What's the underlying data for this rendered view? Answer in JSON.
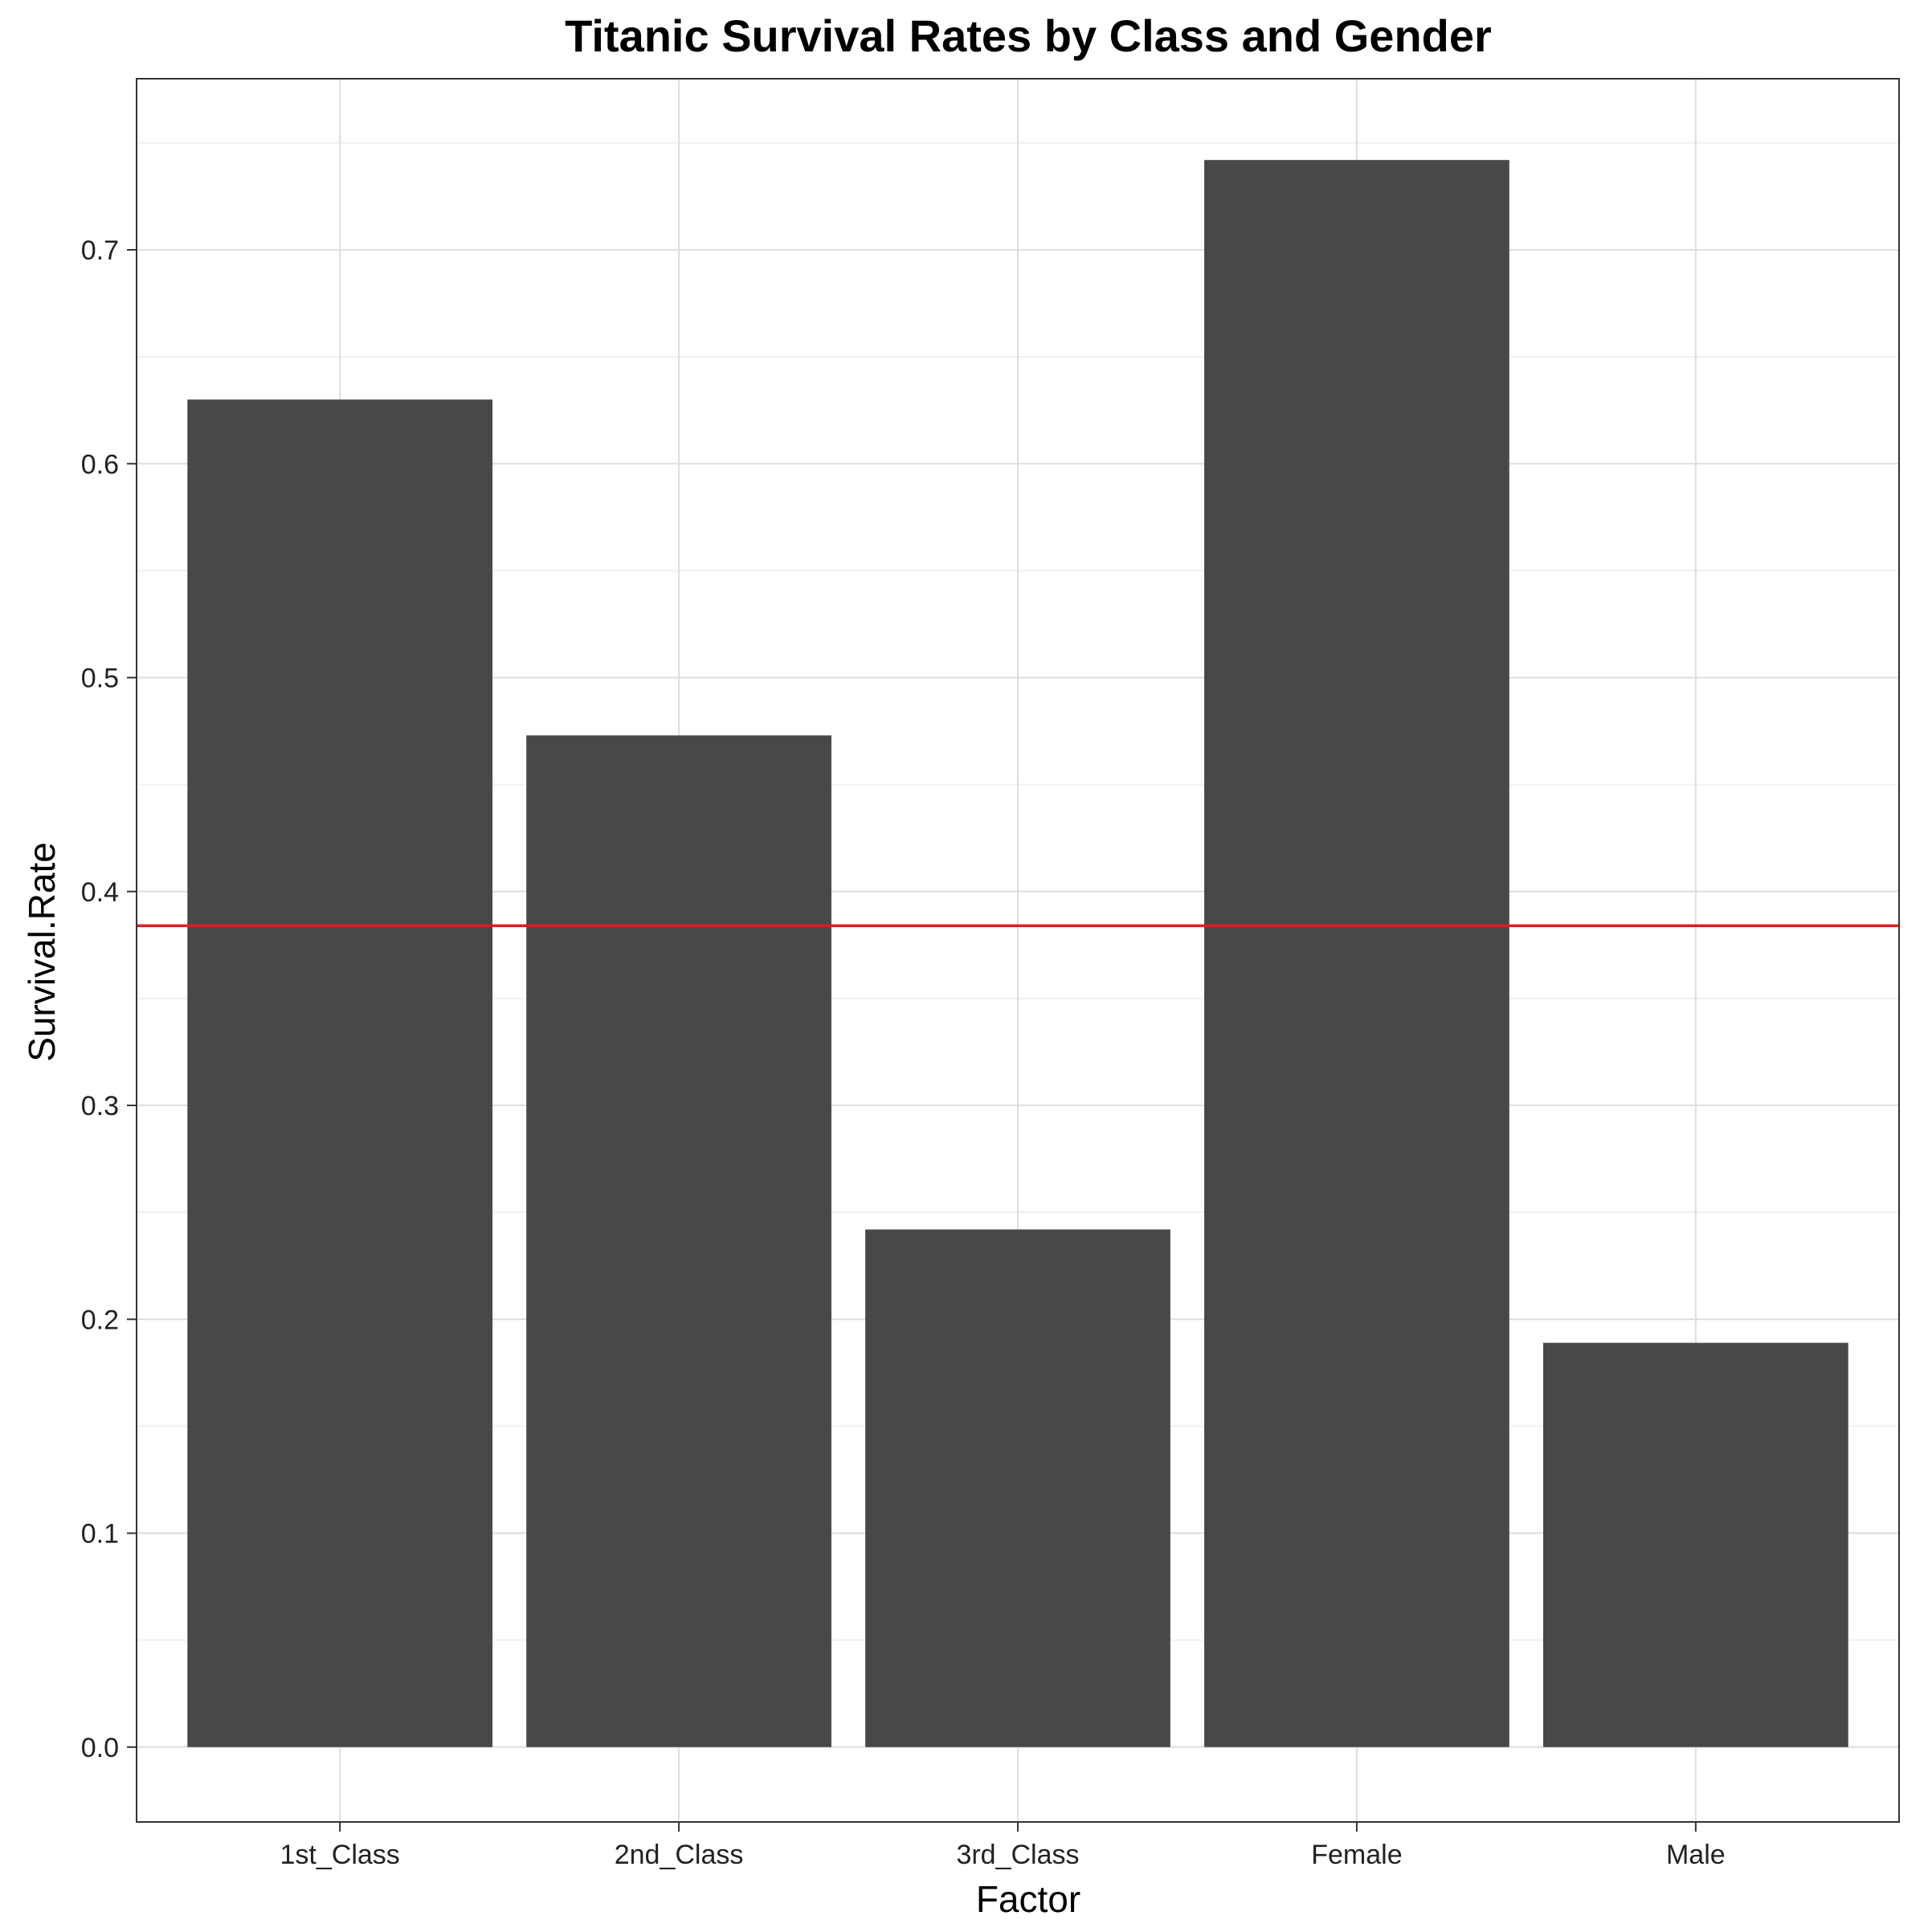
{
  "chart_data": {
    "type": "bar",
    "title": "Titanic Survival Rates by Class and Gender",
    "xlabel": "Factor",
    "ylabel": "Survival.Rate",
    "categories": [
      "1st_Class",
      "2nd_Class",
      "3rd_Class",
      "Female",
      "Male"
    ],
    "values": [
      0.63,
      0.473,
      0.242,
      0.742,
      0.189
    ],
    "ylim": [
      -0.035,
      0.78
    ],
    "yticks": [
      0.0,
      0.1,
      0.2,
      0.3,
      0.4,
      0.5,
      0.6,
      0.7
    ],
    "ytick_labels": [
      "0.0",
      "0.1",
      "0.2",
      "0.3",
      "0.4",
      "0.5",
      "0.6",
      "0.7"
    ],
    "reference_line": {
      "value": 0.384,
      "orientation": "horizontal",
      "color": "#e41a1c"
    },
    "grid": true,
    "bar_color": "#484848",
    "panel_border_color": "#333333",
    "grid_major_color": "#dedede",
    "grid_minor_color": "#f0f0f0"
  }
}
